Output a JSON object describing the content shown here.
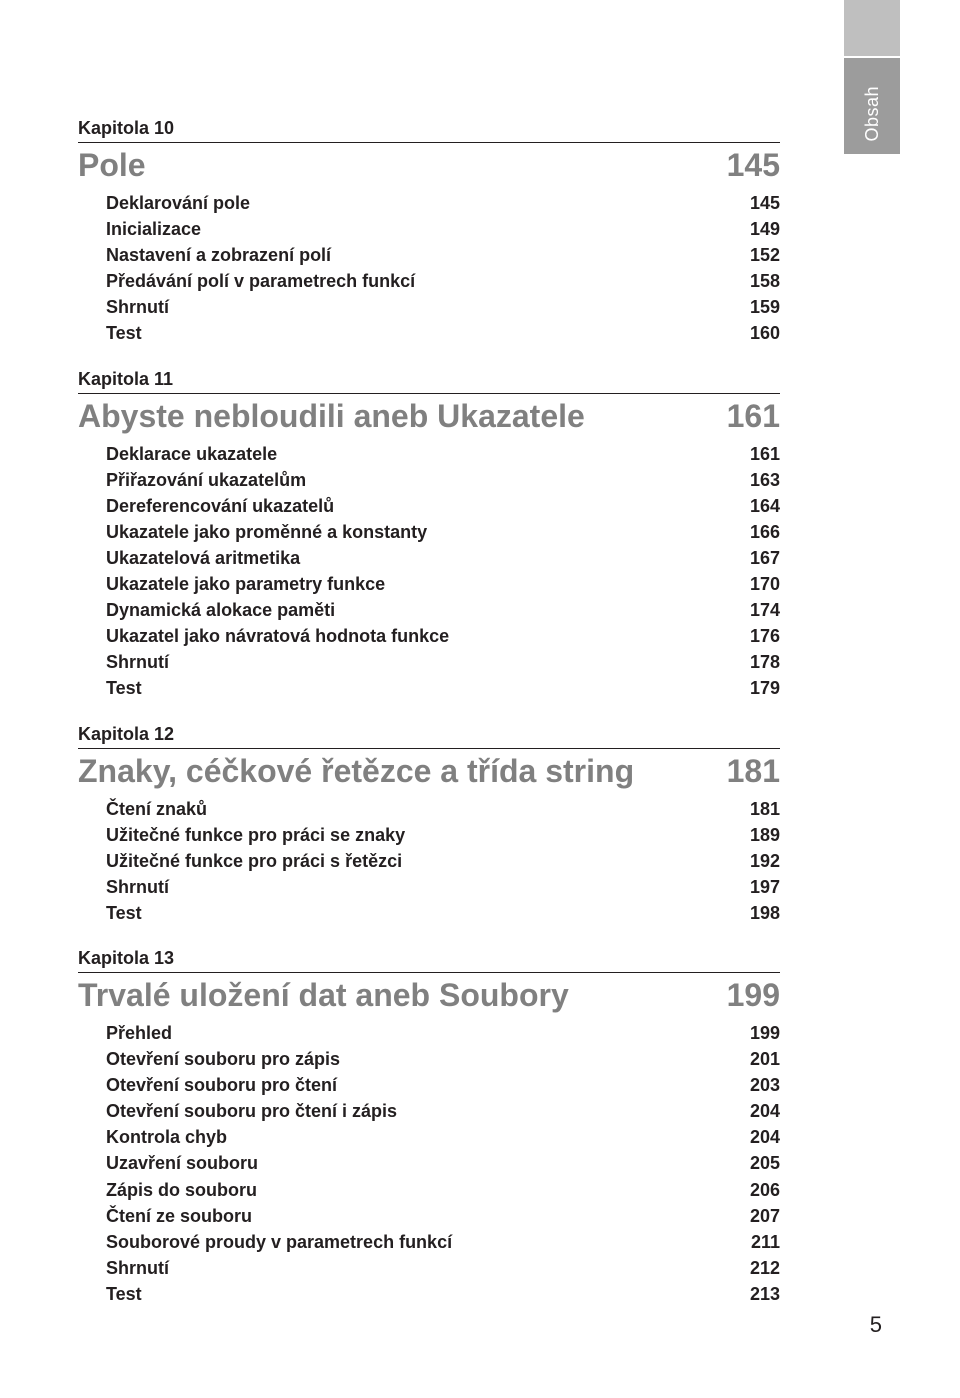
{
  "sidebar": {
    "label": "Obsah"
  },
  "pageNumber": "5",
  "chapters": [
    {
      "label": "Kapitola 10",
      "title": "Pole",
      "page": "145",
      "entries": [
        {
          "name": "Deklarování pole",
          "page": "145"
        },
        {
          "name": "Inicializace",
          "page": "149"
        },
        {
          "name": "Nastavení a zobrazení polí",
          "page": "152"
        },
        {
          "name": "Předávání polí v parametrech funkcí",
          "page": "158"
        },
        {
          "name": "Shrnutí",
          "page": "159"
        },
        {
          "name": "Test",
          "page": "160"
        }
      ]
    },
    {
      "label": "Kapitola 11",
      "title": "Abyste nebloudili aneb Ukazatele",
      "page": "161",
      "entries": [
        {
          "name": "Deklarace ukazatele",
          "page": "161"
        },
        {
          "name": "Přiřazování ukazatelům",
          "page": "163"
        },
        {
          "name": "Dereferencování ukazatelů",
          "page": "164"
        },
        {
          "name": "Ukazatele jako proměnné a konstanty",
          "page": "166"
        },
        {
          "name": "Ukazatelová aritmetika",
          "page": "167"
        },
        {
          "name": "Ukazatele jako parametry funkce",
          "page": "170"
        },
        {
          "name": "Dynamická alokace paměti",
          "page": "174"
        },
        {
          "name": "Ukazatel jako návratová hodnota funkce",
          "page": "176"
        },
        {
          "name": "Shrnutí",
          "page": "178"
        },
        {
          "name": "Test",
          "page": "179"
        }
      ]
    },
    {
      "label": "Kapitola 12",
      "title": "Znaky, céčkové řetězce a třída string",
      "page": "181",
      "entries": [
        {
          "name": "Čtení znaků",
          "page": "181"
        },
        {
          "name": "Užitečné funkce pro práci se znaky",
          "page": "189"
        },
        {
          "name": "Užitečné funkce pro práci s řetězci",
          "page": "192"
        },
        {
          "name": "Shrnutí",
          "page": "197"
        },
        {
          "name": "Test",
          "page": "198"
        }
      ]
    },
    {
      "label": "Kapitola 13",
      "title": "Trvalé uložení dat aneb Soubory",
      "page": "199",
      "entries": [
        {
          "name": "Přehled",
          "page": "199"
        },
        {
          "name": "Otevření souboru pro zápis",
          "page": "201"
        },
        {
          "name": "Otevření souboru pro čtení",
          "page": "203"
        },
        {
          "name": "Otevření souboru pro čtení i zápis",
          "page": "204"
        },
        {
          "name": "Kontrola chyb",
          "page": "204"
        },
        {
          "name": "Uzavření souboru",
          "page": "205"
        },
        {
          "name": "Zápis do souboru",
          "page": "206"
        },
        {
          "name": "Čtení ze souboru",
          "page": "207"
        },
        {
          "name": "Souborové proudy v parametrech funkcí",
          "page": "211"
        },
        {
          "name": "Shrnutí",
          "page": "212"
        },
        {
          "name": "Test",
          "page": "213"
        }
      ]
    }
  ]
}
